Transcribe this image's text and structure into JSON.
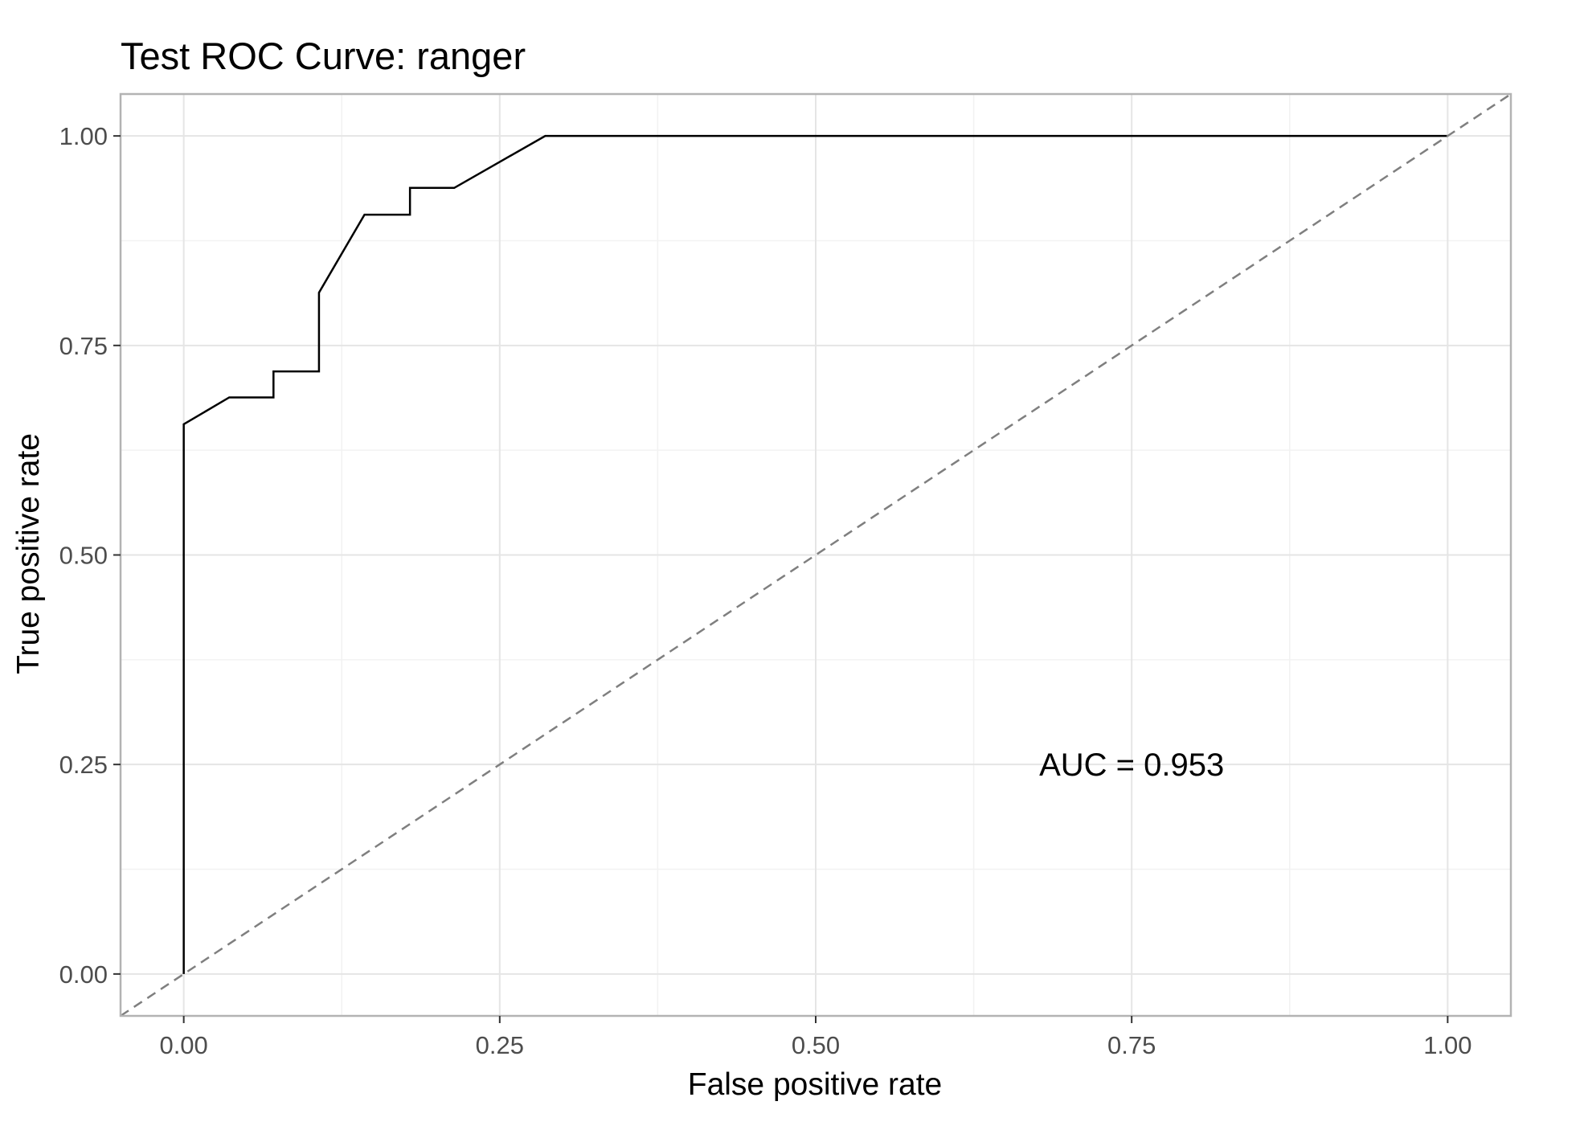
{
  "chart_data": {
    "type": "line",
    "title": "Test ROC Curve: ranger",
    "xlabel": "False positive rate",
    "ylabel": "True positive rate",
    "xlim": [
      -0.05,
      1.05
    ],
    "ylim": [
      -0.05,
      1.05
    ],
    "x_ticks": [
      0,
      0.25,
      0.5,
      0.75,
      1
    ],
    "x_tick_labels": [
      "0.00",
      "0.25",
      "0.50",
      "0.75",
      "1.00"
    ],
    "y_ticks": [
      0,
      0.25,
      0.5,
      0.75,
      1
    ],
    "y_tick_labels": [
      "0.00",
      "0.25",
      "0.50",
      "0.75",
      "1.00"
    ],
    "grid": true,
    "series": [
      {
        "style": "solid",
        "color": "#000000",
        "x": [
          0.0,
          0.0,
          0.036,
          0.071,
          0.071,
          0.107,
          0.107,
          0.143,
          0.179,
          0.179,
          0.214,
          0.25,
          0.286,
          1.0
        ],
        "y": [
          0.0,
          0.656,
          0.688,
          0.688,
          0.719,
          0.719,
          0.813,
          0.906,
          0.906,
          0.938,
          0.938,
          0.969,
          1.0,
          1.0
        ]
      },
      {
        "style": "dashed",
        "color": "#7f7f7f",
        "x": [
          -0.05,
          1.05
        ],
        "y": [
          -0.05,
          1.05
        ]
      }
    ],
    "annotations": [
      {
        "text": "AUC = 0.953",
        "x": 0.75,
        "y": 0.25
      }
    ]
  }
}
